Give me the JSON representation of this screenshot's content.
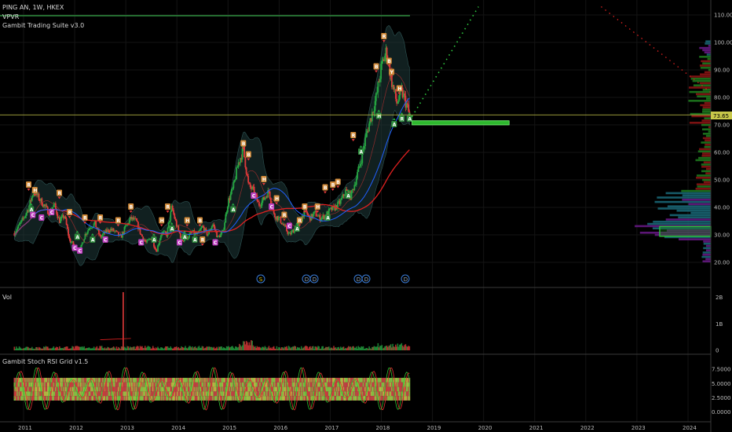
{
  "header": {
    "symbol_line": "PING AN, 1W, HKEX",
    "indicator_1": "VPVR",
    "indicator_2": "Gambit Trading Suite v3.0"
  },
  "price_axis": {
    "ticks": [
      "110.00",
      "100.00",
      "90.00",
      "80.00",
      "70.00",
      "60.00",
      "50.00",
      "40.00",
      "30.00",
      "20.00"
    ],
    "last_price": "73.65"
  },
  "volume_panel": {
    "title": "Vol",
    "ticks": [
      "2B",
      "1B",
      "0"
    ]
  },
  "stoch_panel": {
    "title": "Gambit Stoch RSI Grid v1.5",
    "ticks": [
      "7.5000",
      "5.0000",
      "2.5000",
      "0.0000"
    ]
  },
  "time_axis": {
    "ticks": [
      "2011",
      "2012",
      "2013",
      "2014",
      "2015",
      "2016",
      "2017",
      "2018",
      "2019",
      "2020",
      "2021",
      "2022",
      "2023",
      "2024"
    ]
  },
  "events": [
    "S",
    "D",
    "D",
    "D",
    "D",
    "D"
  ],
  "colors": {
    "up": "#26a641",
    "down": "#e03a3a",
    "ma_red": "#e02020",
    "ma_blue": "#2060ff",
    "band_fill": "#1f3a3a",
    "horizontal_line": "#c8c84a",
    "target_box": "#2eb82e",
    "vp_green": "#1e7f1e",
    "vp_red": "#8f1515",
    "vp_purple": "#6b1a8a",
    "vp_teal": "#1a6b7a",
    "buy_label": "#2e8b3d",
    "sell_label": "#d08a3a",
    "c_label": "#c040c0"
  },
  "chart_data": [
    {
      "type": "line",
      "title": "PING AN, 1W, HKEX",
      "xlabel": "",
      "ylabel": "",
      "x_range": [
        2010.8,
        2024.5
      ],
      "ylim": [
        18,
        113
      ],
      "series": [
        {
          "values_x": [
            2010.8,
            2011.0,
            2011.1,
            2011.2,
            2011.35,
            2011.5,
            2011.6,
            2011.7,
            2011.8,
            2011.9,
            2012.0,
            2012.1,
            2012.2,
            2012.3,
            2012.4,
            2012.5,
            2012.6,
            2012.7,
            2012.8,
            2012.9,
            2013.0,
            2013.1,
            2013.2,
            2013.3,
            2013.4,
            2013.5,
            2013.6,
            2013.7,
            2013.8,
            2013.9,
            2014.0,
            2014.1,
            2014.2,
            2014.3,
            2014.4,
            2014.5,
            2014.6,
            2014.7,
            2014.8,
            2014.9,
            2015.0,
            2015.1,
            2015.2,
            2015.3,
            2015.4,
            2015.5,
            2015.6,
            2015.7,
            2015.8,
            2015.9,
            2016.0,
            2016.1,
            2016.2,
            2016.3,
            2016.4,
            2016.5,
            2016.6,
            2016.7,
            2016.8,
            2016.9,
            2017.0,
            2017.1,
            2017.2,
            2017.3,
            2017.4,
            2017.5,
            2017.6,
            2017.7,
            2017.8,
            2017.9,
            2018.0,
            2018.1,
            2018.2,
            2018.3,
            2018.4,
            2018.5,
            2018.55
          ],
          "values_y": [
            30,
            36,
            40,
            46,
            42,
            38,
            41,
            35,
            37,
            28,
            26,
            24,
            30,
            33,
            34,
            29,
            31,
            32,
            31,
            29,
            33,
            36,
            35,
            30,
            27,
            29,
            24,
            31,
            30,
            40,
            33,
            28,
            29,
            31,
            30,
            33,
            30,
            34,
            29,
            31,
            42,
            47,
            56,
            61,
            48,
            46,
            41,
            43,
            46,
            37,
            36,
            33,
            30,
            32,
            34,
            39,
            36,
            38,
            36,
            37,
            39,
            40,
            42,
            46,
            44,
            50,
            57,
            66,
            73,
            80,
            91,
            97,
            86,
            78,
            82,
            77,
            73
          ]
        }
      ],
      "annotations": {
        "horizontal_line": 73.65,
        "target_zone": [
          70.0,
          71.5
        ],
        "projection_dotted_green": [
          [
            2018.6,
            73
          ],
          [
            2019.9,
            113
          ]
        ],
        "projection_dotted_red": [
          [
            2022.3,
            113
          ],
          [
            2024.5,
            81
          ]
        ]
      }
    },
    {
      "type": "bar",
      "title": "Vol",
      "ylim": [
        0,
        2.2
      ],
      "note": "weekly volume in billions",
      "spike_x": 2012.95,
      "spike_value": 2.2
    },
    {
      "type": "line",
      "title": "Gambit Stoch RSI Grid v1.5",
      "ylim": [
        -0.5,
        8.5
      ],
      "grid_band": [
        2.0,
        6.0
      ]
    }
  ]
}
